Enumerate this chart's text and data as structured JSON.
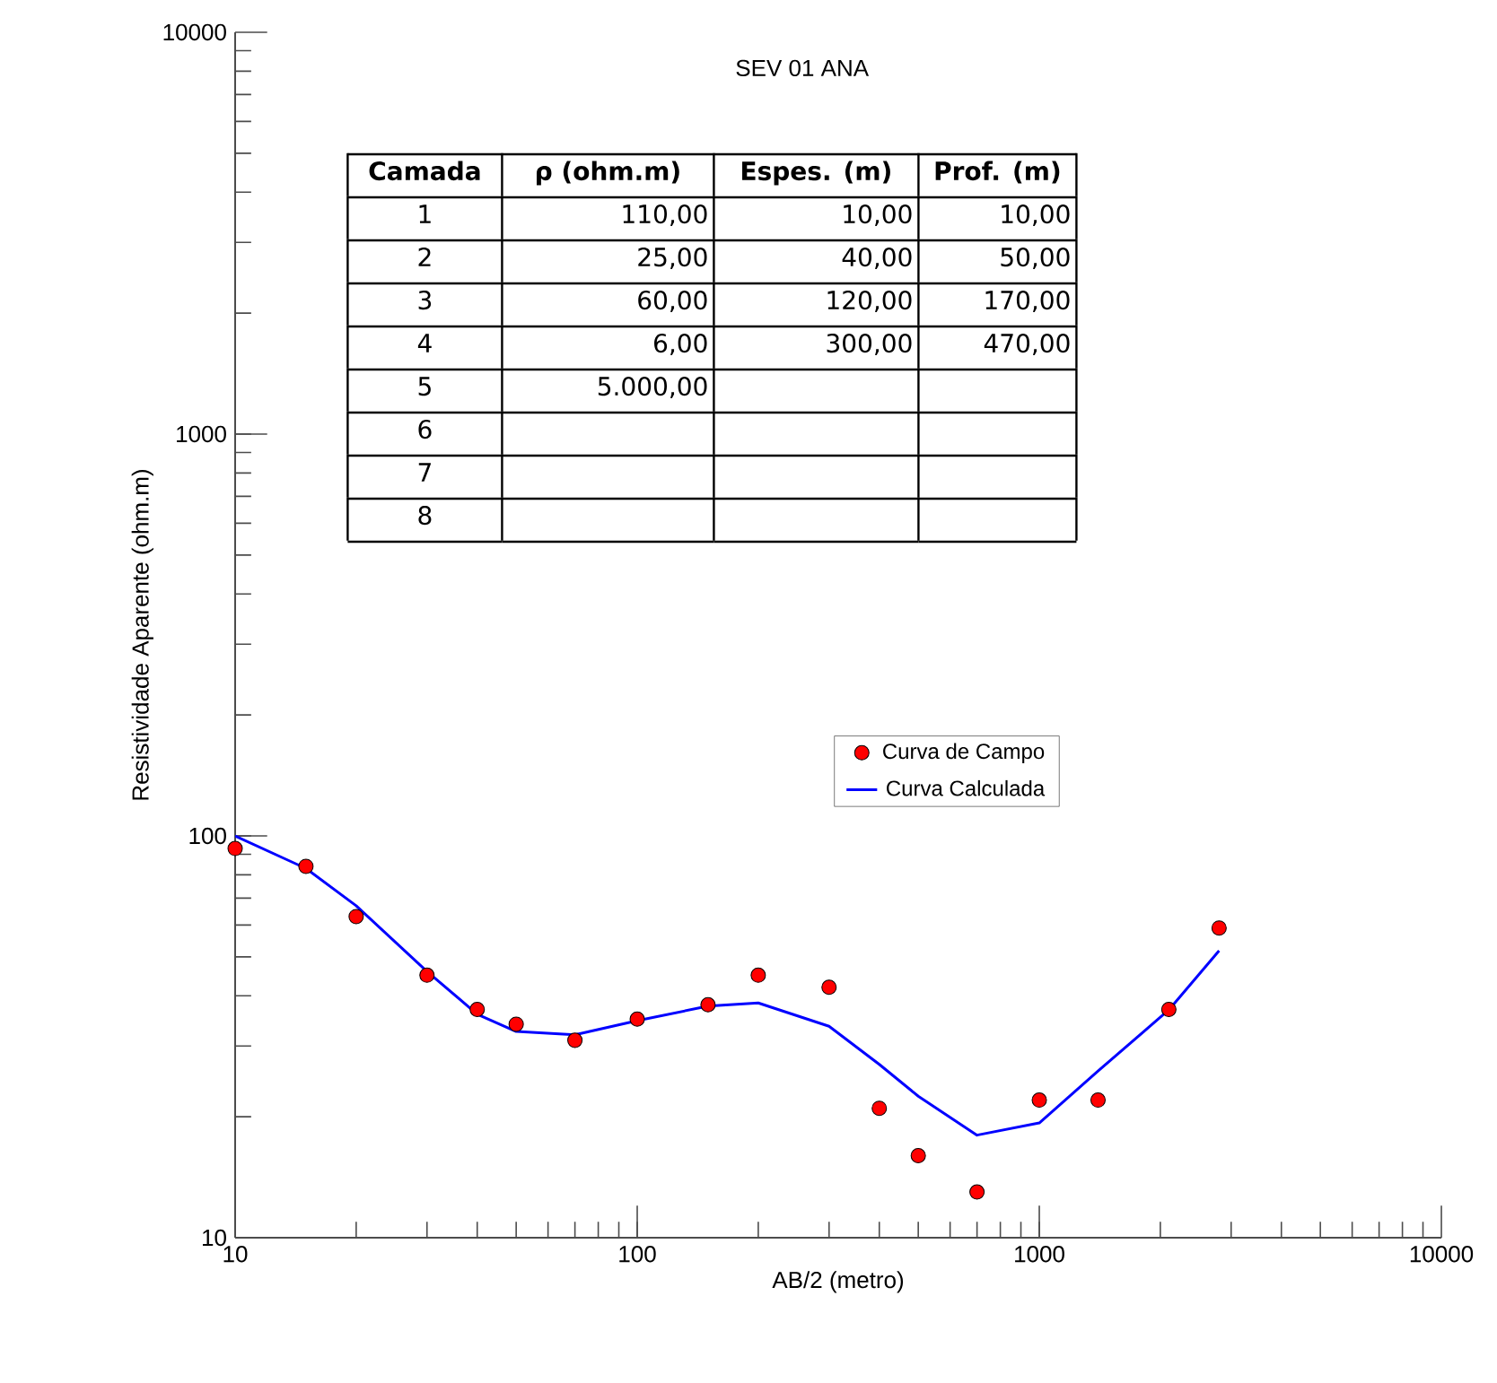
{
  "chart_data": {
    "type": "scatter",
    "title": "SEV 01 ANA",
    "xlabel": "AB/2 (metro)",
    "ylabel": "Resistividade Aparente (ohm.m)",
    "log": "xy",
    "xlim": [
      10,
      10000
    ],
    "ylim": [
      10,
      10000
    ],
    "xticks": [
      10,
      100,
      1000,
      10000
    ],
    "yticks": [
      10,
      100,
      1000,
      10000
    ],
    "legend": "right",
    "series": [
      {
        "name": "Curva de Campo",
        "marker": "circle",
        "color": "#ff0000",
        "x": [
          10,
          15,
          20,
          30,
          40,
          50,
          70,
          100,
          150,
          200,
          300,
          400,
          500,
          700,
          1000,
          1400,
          2100,
          2800
        ],
        "values": [
          93,
          84,
          63,
          45,
          37,
          34,
          31,
          35,
          38,
          45,
          42,
          21,
          16,
          13,
          22,
          22,
          37,
          59
        ]
      },
      {
        "name": "Curva Calculada",
        "type": "line",
        "color": "#0000ff",
        "line_style": "solid",
        "x": [
          10,
          15,
          20,
          30,
          40,
          50,
          70,
          100,
          150,
          200,
          300,
          400,
          500,
          700,
          1000,
          1400,
          2100,
          2800
        ],
        "values": [
          100,
          83,
          67,
          46,
          36,
          32.6,
          32,
          34.7,
          37.7,
          38.4,
          33.6,
          27,
          22.5,
          18,
          19.3,
          26,
          36.9,
          51.8
        ]
      }
    ],
    "annotations": [
      "Camada",
      "ρ (ohm.m)",
      "Espes. (m)",
      "Prof. (m)",
      "1",
      "110,00",
      "10,00",
      "10,00",
      "2",
      "25,00",
      "40,00",
      "50,00",
      "3",
      "60,00",
      "120,00",
      "170,00",
      "4",
      "6,00",
      "300,00",
      "470,00",
      "5",
      "5.000,00",
      null,
      null,
      "6",
      null,
      null,
      null,
      "7",
      null,
      null,
      null,
      "8",
      null,
      null,
      null
    ]
  }
}
